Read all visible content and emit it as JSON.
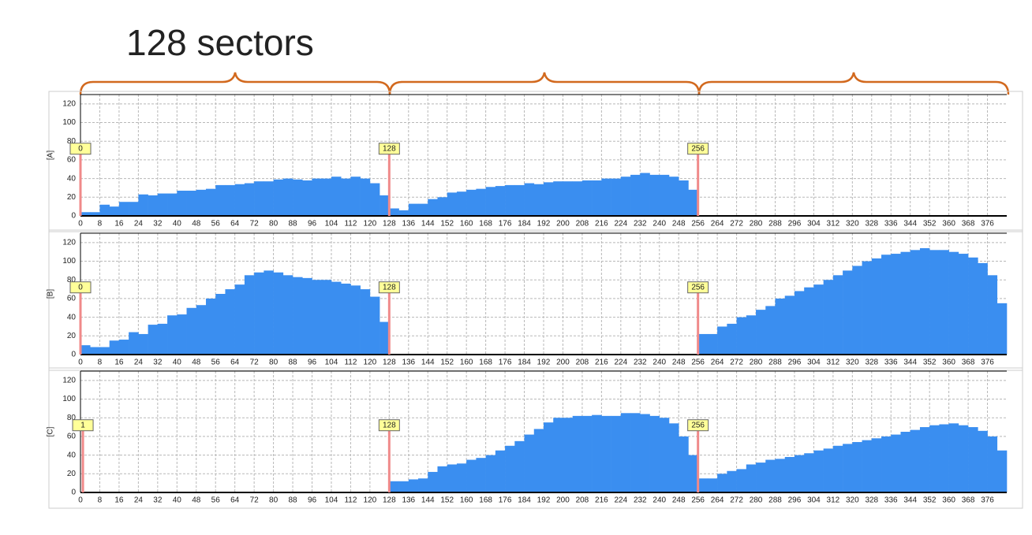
{
  "header": {
    "title": "128 sectors"
  },
  "chart_data": [
    {
      "type": "histogram",
      "ylabel": "[A]",
      "color": "#3a8ef0",
      "grid": true,
      "xlim": [
        0,
        384
      ],
      "ylim": [
        0,
        130
      ],
      "xticks": [
        0,
        8,
        16,
        24,
        32,
        40,
        48,
        56,
        64,
        72,
        80,
        88,
        96,
        104,
        112,
        120,
        128,
        136,
        144,
        152,
        160,
        168,
        176,
        184,
        192,
        200,
        208,
        216,
        224,
        232,
        240,
        248,
        256,
        264,
        272,
        280,
        288,
        296,
        304,
        312,
        320,
        328,
        336,
        344,
        352,
        360,
        368,
        376
      ],
      "yticks": [
        0,
        20,
        40,
        60,
        80,
        100,
        120
      ],
      "markers": [
        0,
        128,
        256
      ],
      "bins": [
        0,
        4,
        8,
        12,
        16,
        20,
        24,
        28,
        32,
        36,
        40,
        44,
        48,
        52,
        56,
        60,
        64,
        68,
        72,
        76,
        80,
        84,
        88,
        92,
        96,
        100,
        104,
        108,
        112,
        116,
        120,
        124,
        128,
        132,
        136,
        140,
        144,
        148,
        152,
        156,
        160,
        164,
        168,
        172,
        176,
        180,
        184,
        188,
        192,
        196,
        200,
        204,
        208,
        212,
        216,
        220,
        224,
        228,
        232,
        236,
        240,
        244,
        248,
        252,
        256,
        260,
        264,
        268,
        272,
        276,
        280,
        284,
        288,
        292,
        296,
        300,
        304,
        308,
        312,
        316,
        320,
        324,
        328,
        332,
        336,
        340,
        344,
        348,
        352,
        356,
        360,
        364,
        368,
        372,
        376,
        380,
        384
      ],
      "values": [
        4,
        4,
        12,
        10,
        15,
        15,
        23,
        22,
        24,
        24,
        27,
        27,
        28,
        29,
        33,
        33,
        34,
        35,
        37,
        37,
        39,
        40,
        39,
        38,
        40,
        40,
        42,
        40,
        42,
        40,
        35,
        22,
        8,
        6,
        13,
        13,
        18,
        20,
        25,
        26,
        28,
        29,
        31,
        32,
        33,
        33,
        35,
        34,
        36,
        37,
        37,
        37,
        38,
        38,
        40,
        40,
        42,
        44,
        46,
        44,
        44,
        42,
        38,
        28,
        0,
        0,
        0,
        0,
        0,
        0,
        0,
        0,
        0,
        0,
        0,
        0,
        0,
        0,
        0,
        0,
        0,
        0,
        0,
        0,
        0,
        0,
        0,
        0,
        0,
        0,
        0,
        0,
        0,
        0,
        0,
        0
      ]
    },
    {
      "type": "histogram",
      "ylabel": "[B]",
      "color": "#3a8ef0",
      "grid": true,
      "xlim": [
        0,
        384
      ],
      "ylim": [
        0,
        130
      ],
      "xticks": [
        0,
        8,
        16,
        24,
        32,
        40,
        48,
        56,
        64,
        72,
        80,
        88,
        96,
        104,
        112,
        120,
        128,
        136,
        144,
        152,
        160,
        168,
        176,
        184,
        192,
        200,
        208,
        216,
        224,
        232,
        240,
        248,
        256,
        264,
        272,
        280,
        288,
        296,
        304,
        312,
        320,
        328,
        336,
        344,
        352,
        360,
        368,
        376
      ],
      "yticks": [
        0,
        20,
        40,
        60,
        80,
        100,
        120
      ],
      "markers": [
        0,
        128,
        256
      ],
      "bins": [
        0,
        4,
        8,
        12,
        16,
        20,
        24,
        28,
        32,
        36,
        40,
        44,
        48,
        52,
        56,
        60,
        64,
        68,
        72,
        76,
        80,
        84,
        88,
        92,
        96,
        100,
        104,
        108,
        112,
        116,
        120,
        124,
        128,
        132,
        136,
        140,
        144,
        148,
        152,
        156,
        160,
        164,
        168,
        172,
        176,
        180,
        184,
        188,
        192,
        196,
        200,
        204,
        208,
        212,
        216,
        220,
        224,
        228,
        232,
        236,
        240,
        244,
        248,
        252,
        256,
        260,
        264,
        268,
        272,
        276,
        280,
        284,
        288,
        292,
        296,
        300,
        304,
        308,
        312,
        316,
        320,
        324,
        328,
        332,
        336,
        340,
        344,
        348,
        352,
        356,
        360,
        364,
        368,
        372,
        376,
        380,
        384
      ],
      "values": [
        10,
        8,
        8,
        15,
        16,
        24,
        22,
        32,
        33,
        42,
        43,
        50,
        53,
        60,
        65,
        70,
        75,
        85,
        88,
        90,
        88,
        85,
        83,
        82,
        80,
        80,
        78,
        76,
        74,
        70,
        62,
        35,
        0,
        0,
        0,
        0,
        0,
        0,
        0,
        0,
        0,
        0,
        0,
        0,
        0,
        0,
        0,
        0,
        0,
        0,
        0,
        0,
        0,
        0,
        0,
        0,
        0,
        0,
        0,
        0,
        0,
        0,
        0,
        0,
        22,
        22,
        30,
        33,
        40,
        42,
        48,
        52,
        60,
        63,
        68,
        72,
        75,
        80,
        85,
        90,
        95,
        100,
        103,
        107,
        108,
        110,
        112,
        114,
        112,
        112,
        110,
        108,
        104,
        98,
        85,
        55
      ]
    },
    {
      "type": "histogram",
      "ylabel": "[C]",
      "color": "#3a8ef0",
      "grid": true,
      "xlim": [
        0,
        384
      ],
      "ylim": [
        0,
        130
      ],
      "xticks": [
        0,
        8,
        16,
        24,
        32,
        40,
        48,
        56,
        64,
        72,
        80,
        88,
        96,
        104,
        112,
        120,
        128,
        136,
        144,
        152,
        160,
        168,
        176,
        184,
        192,
        200,
        208,
        216,
        224,
        232,
        240,
        248,
        256,
        264,
        272,
        280,
        288,
        296,
        304,
        312,
        320,
        328,
        336,
        344,
        352,
        360,
        368,
        376
      ],
      "yticks": [
        0,
        20,
        40,
        60,
        80,
        100,
        120
      ],
      "markers": [
        1,
        128,
        256
      ],
      "bins": [
        0,
        4,
        8,
        12,
        16,
        20,
        24,
        28,
        32,
        36,
        40,
        44,
        48,
        52,
        56,
        60,
        64,
        68,
        72,
        76,
        80,
        84,
        88,
        92,
        96,
        100,
        104,
        108,
        112,
        116,
        120,
        124,
        128,
        132,
        136,
        140,
        144,
        148,
        152,
        156,
        160,
        164,
        168,
        172,
        176,
        180,
        184,
        188,
        192,
        196,
        200,
        204,
        208,
        212,
        216,
        220,
        224,
        228,
        232,
        236,
        240,
        244,
        248,
        252,
        256,
        260,
        264,
        268,
        272,
        276,
        280,
        284,
        288,
        292,
        296,
        300,
        304,
        308,
        312,
        316,
        320,
        324,
        328,
        332,
        336,
        340,
        344,
        348,
        352,
        356,
        360,
        364,
        368,
        372,
        376,
        380,
        384
      ],
      "values": [
        0,
        0,
        0,
        0,
        0,
        0,
        0,
        0,
        0,
        0,
        0,
        0,
        0,
        0,
        0,
        0,
        0,
        0,
        0,
        0,
        0,
        0,
        0,
        0,
        0,
        0,
        0,
        0,
        0,
        0,
        0,
        0,
        12,
        12,
        14,
        15,
        22,
        28,
        30,
        31,
        35,
        37,
        40,
        45,
        50,
        55,
        62,
        68,
        75,
        80,
        80,
        82,
        82,
        83,
        82,
        82,
        85,
        85,
        84,
        82,
        80,
        74,
        60,
        40,
        15,
        15,
        20,
        23,
        25,
        30,
        32,
        35,
        36,
        38,
        40,
        42,
        45,
        47,
        50,
        52,
        54,
        56,
        58,
        60,
        62,
        65,
        67,
        70,
        72,
        73,
        74,
        72,
        70,
        66,
        60,
        45
      ]
    }
  ]
}
